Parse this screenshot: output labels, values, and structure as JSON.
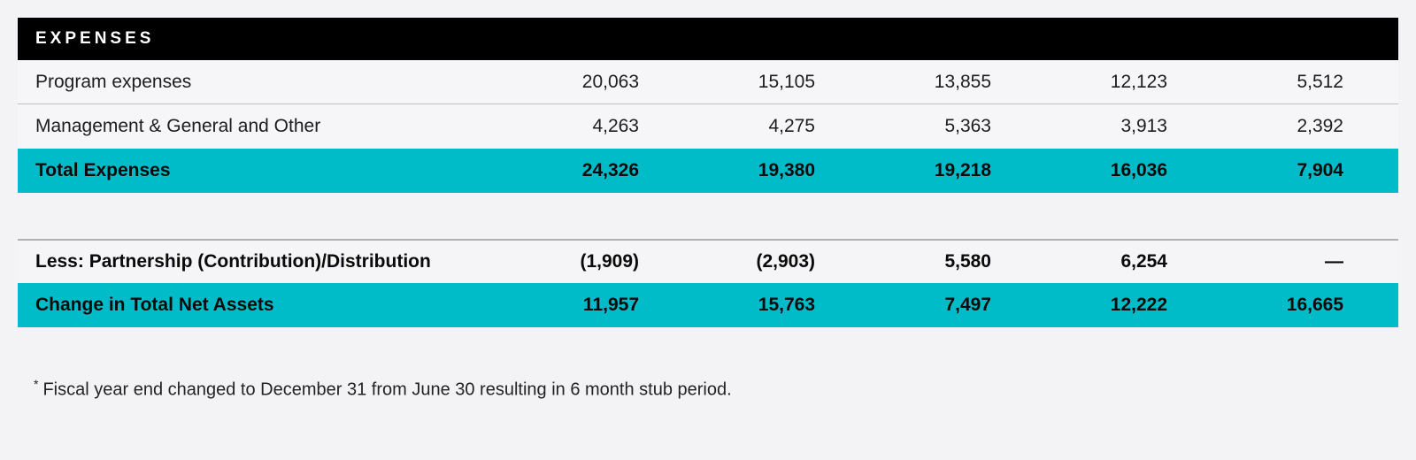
{
  "table": {
    "title": "EXPENSES",
    "rows": [
      {
        "label": "Program expenses",
        "values": [
          "20,063",
          "15,105",
          "13,855",
          "12,123",
          "5,512"
        ]
      },
      {
        "label": "Management & General and Other",
        "values": [
          "4,263",
          "4,275",
          "5,363",
          "3,913",
          "2,392"
        ]
      },
      {
        "label": "Total Expenses",
        "values": [
          "24,326",
          "19,380",
          "19,218",
          "16,036",
          "7,904"
        ]
      },
      {
        "label": "Less: Partnership (Contribution)/Distribution",
        "values": [
          "(1,909)",
          "(2,903)",
          "5,580",
          "6,254",
          "—"
        ]
      },
      {
        "label": "Change in Total Net Assets",
        "values": [
          "11,957",
          "15,763",
          "7,497",
          "12,222",
          "16,665"
        ]
      }
    ]
  },
  "footnote": {
    "marker": "*",
    "text": "Fiscal year end changed to December 31 from June 30 resulting in 6 month stub period."
  },
  "colors": {
    "accent": "#00bcc9",
    "header_bg": "#000000",
    "header_text": "#ffffff",
    "page_bg": "#f3f3f5",
    "divider": "#bcbcbc",
    "text": "#1d1d1f"
  }
}
